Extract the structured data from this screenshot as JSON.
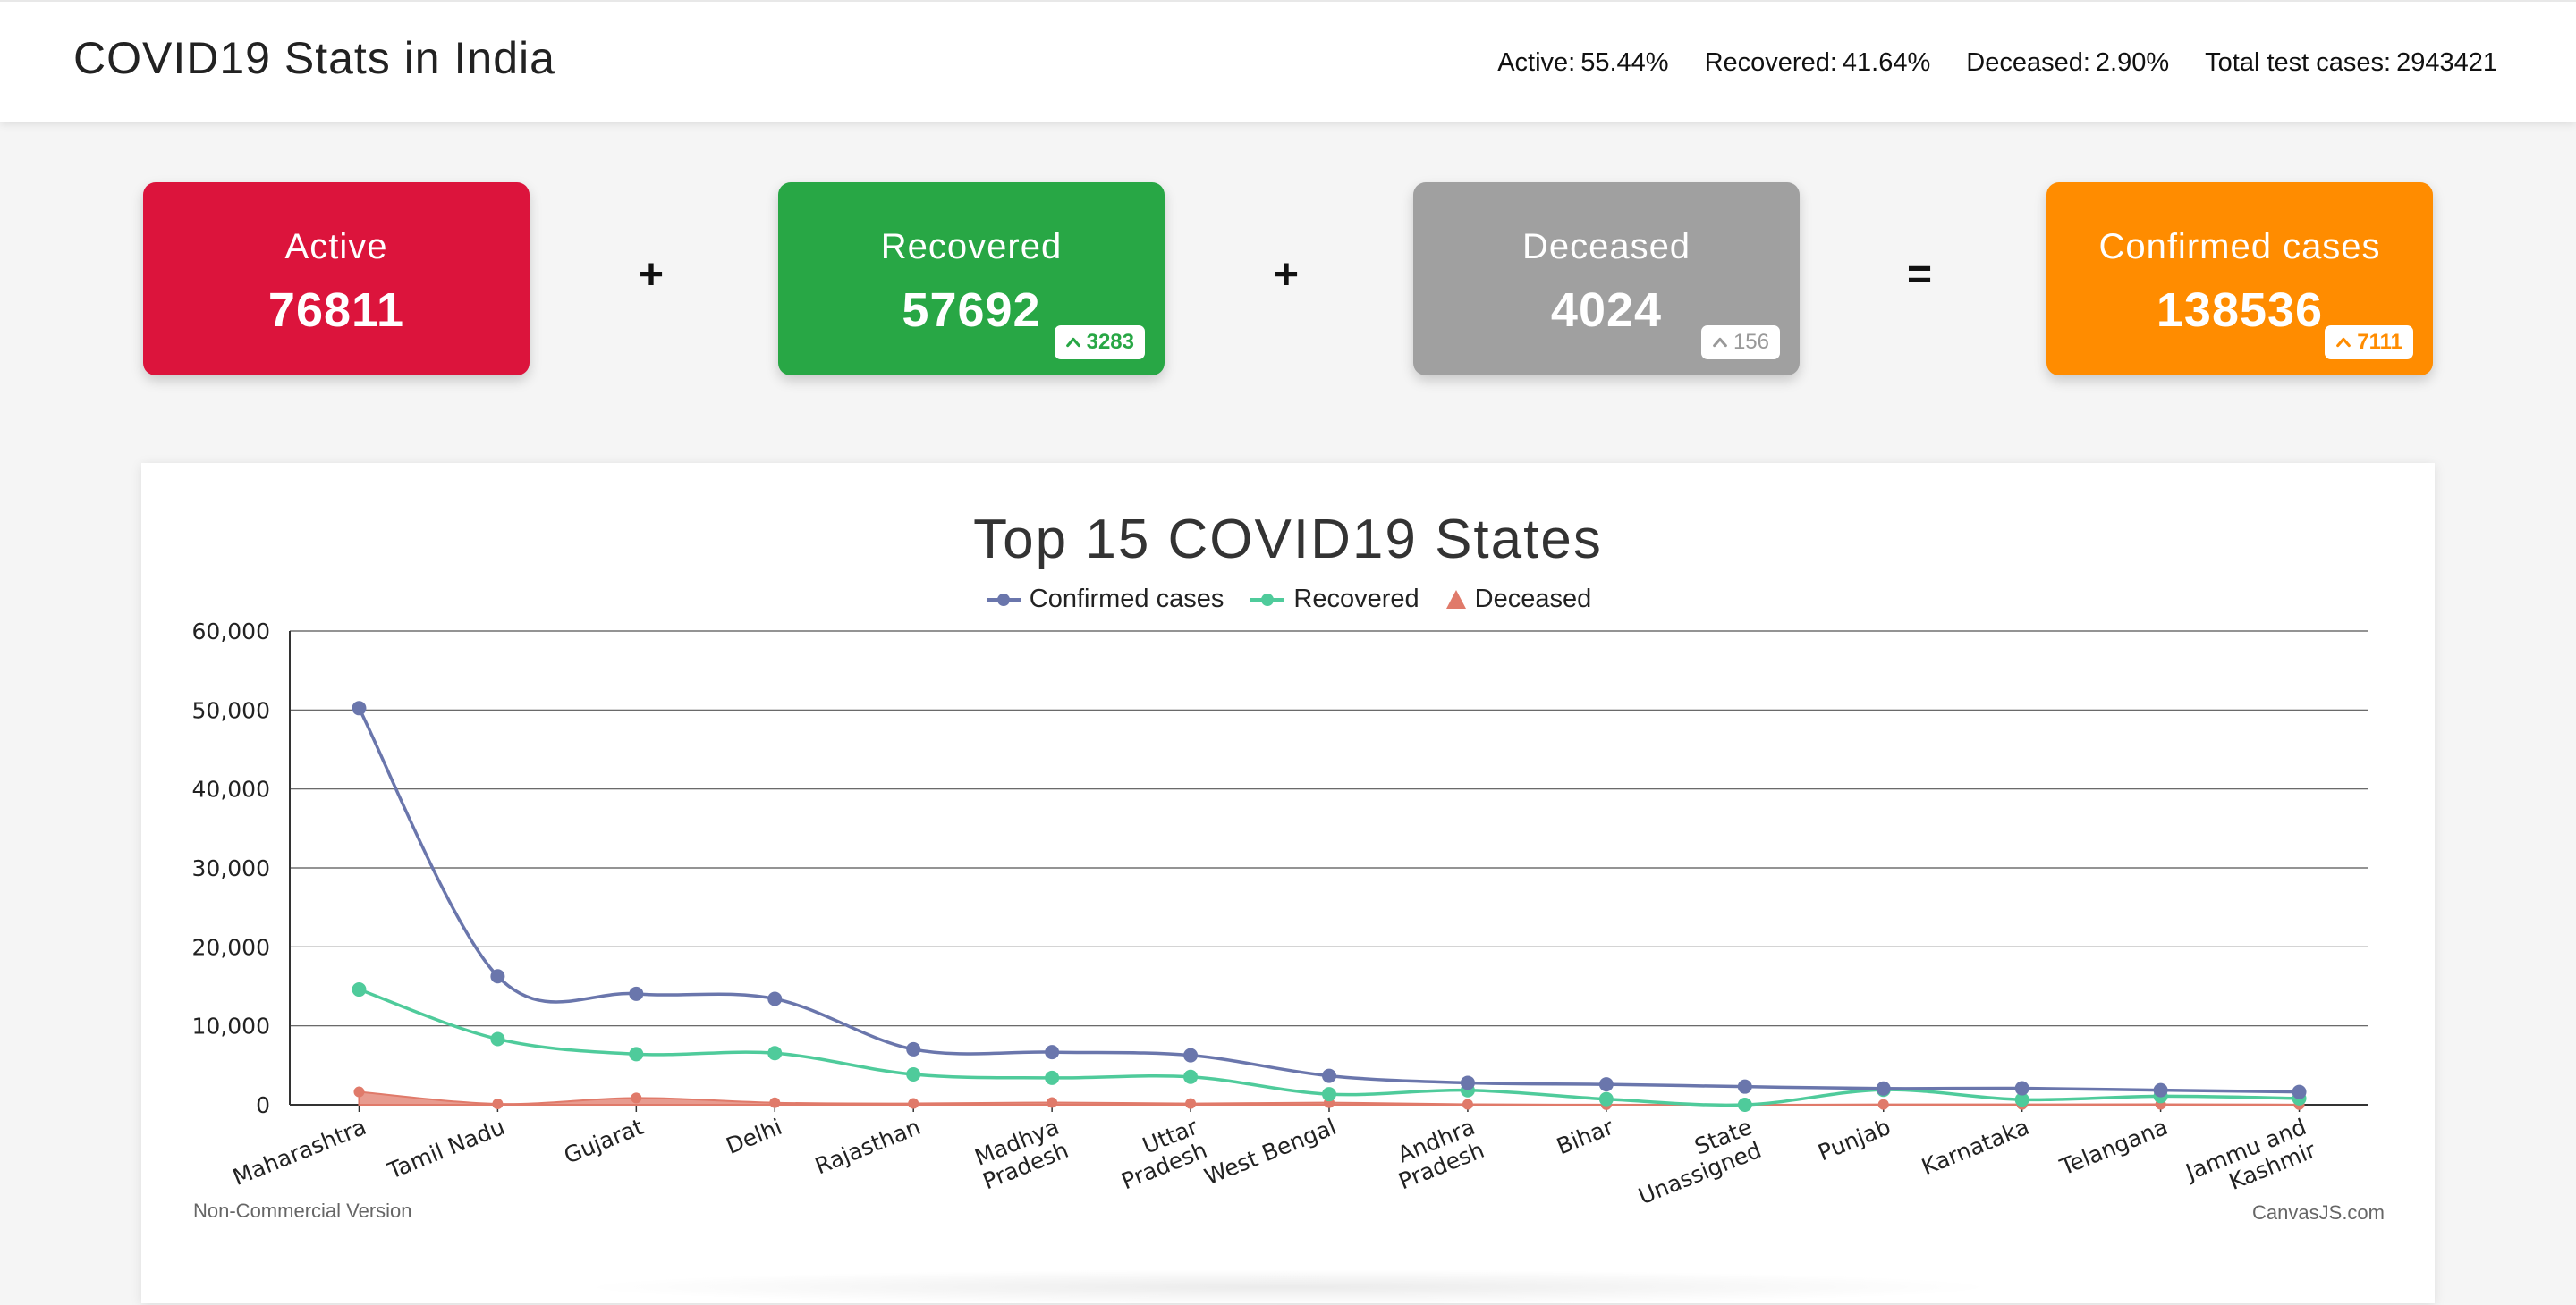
{
  "header": {
    "title": "COVID19 Stats in India",
    "stats": [
      {
        "label": "Active:",
        "value": "55.44%"
      },
      {
        "label": "Recovered:",
        "value": "41.64%"
      },
      {
        "label": "Deceased:",
        "value": "2.90%"
      },
      {
        "label": "Total test cases:",
        "value": "2943421"
      }
    ]
  },
  "cards": {
    "active": {
      "label": "Active",
      "value": "76811",
      "color": "#dc143c"
    },
    "recovered": {
      "label": "Recovered",
      "value": "57692",
      "delta": "3283",
      "color": "#28a745"
    },
    "deceased": {
      "label": "Deceased",
      "value": "4024",
      "delta": "156",
      "color": "#a0a0a0"
    },
    "confirmed": {
      "label": "Confirmed cases",
      "value": "138536",
      "delta": "7111",
      "color": "#ff8c00"
    }
  },
  "operators": {
    "plus1": "+",
    "plus2": "+",
    "equals": "="
  },
  "chart_footer": {
    "left": "Non-Commercial Version",
    "right": "CanvasJS.com"
  },
  "chart_data": {
    "type": "line",
    "title": "Top 15 COVID19 States",
    "xlabel": "",
    "ylabel": "",
    "ylim": [
      0,
      60000
    ],
    "yticks": [
      0,
      10000,
      20000,
      30000,
      40000,
      50000,
      60000
    ],
    "ytick_labels": [
      "0",
      "10,000",
      "20,000",
      "30,000",
      "40,000",
      "50,000",
      "60,000"
    ],
    "grid": true,
    "legend_position": "top",
    "categories": [
      "Maharashtra",
      "Tamil Nadu",
      "Gujarat",
      "Delhi",
      "Rajasthan",
      "Madhya Pradesh",
      "Uttar Pradesh",
      "West Bengal",
      "Andhra Pradesh",
      "Bihar",
      "State Unassigned",
      "Punjab",
      "Karnataka",
      "Telangana",
      "Jammu and Kashmir"
    ],
    "category_label_lines": [
      [
        "Maharashtra"
      ],
      [
        "Tamil Nadu"
      ],
      [
        "Gujarat"
      ],
      [
        "Delhi"
      ],
      [
        "Rajasthan"
      ],
      [
        "Madhya",
        "Pradesh"
      ],
      [
        "Uttar",
        "Pradesh"
      ],
      [
        "West Bengal"
      ],
      [
        "Andhra",
        "Pradesh"
      ],
      [
        "Bihar"
      ],
      [
        "State",
        "Unassigned"
      ],
      [
        "Punjab"
      ],
      [
        "Karnataka"
      ],
      [
        "Telangana"
      ],
      [
        "Jammu and",
        "Kashmir"
      ]
    ],
    "series": [
      {
        "name": "Confirmed cases",
        "color": "#6a76ac",
        "marker": "circle",
        "values": [
          50231,
          16277,
          14056,
          13418,
          7028,
          6665,
          6268,
          3667,
          2780,
          2587,
          2300,
          2060,
          2089,
          1854,
          1621
        ]
      },
      {
        "name": "Recovered",
        "color": "#4fcb9b",
        "marker": "circle",
        "values": [
          14600,
          8324,
          6412,
          6540,
          3848,
          3408,
          3538,
          1339,
          1841,
          717,
          0,
          1898,
          654,
          1092,
          809
        ]
      },
      {
        "name": "Deceased",
        "color": "#e07a6a",
        "marker": "triangle",
        "values": [
          1635,
          111,
          858,
          261,
          163,
          290,
          161,
          272,
          57,
          11,
          0,
          40,
          44,
          53,
          21
        ]
      }
    ]
  }
}
